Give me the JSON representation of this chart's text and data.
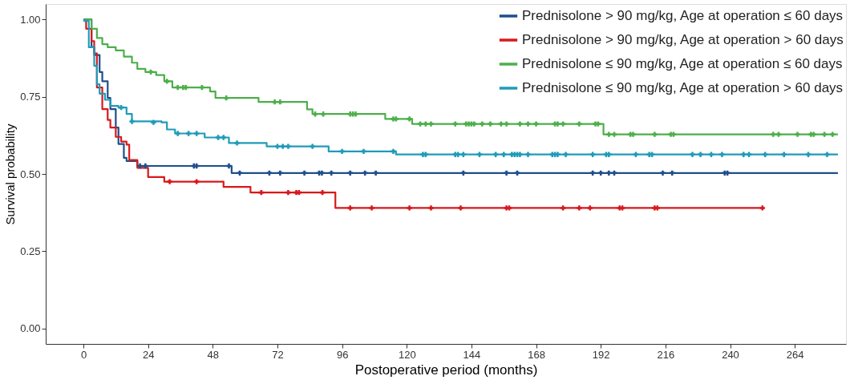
{
  "chart_data": {
    "type": "step",
    "xlabel": "Postoperative period (months)",
    "ylabel": "Survival probability",
    "xlim": [
      -14,
      283
    ],
    "ylim": [
      -0.05,
      1.05
    ],
    "xticks": [
      0,
      24,
      48,
      72,
      96,
      120,
      144,
      168,
      192,
      216,
      240,
      264
    ],
    "yticks": [
      {
        "value": 0,
        "label": "0.00"
      },
      {
        "value": 0.25,
        "label": "0.25"
      },
      {
        "value": 0.5,
        "label": "0.50"
      },
      {
        "value": 0.75,
        "label": "0.75"
      },
      {
        "value": 1,
        "label": "1.00"
      }
    ],
    "grid": false,
    "legend": "top right",
    "line_style": "solid",
    "series": [
      {
        "type": "step",
        "name": "Prednisolone > 90 mg/kg, Age at operation ≤ 60 days",
        "color": "#1f4e8c",
        "x": [
          0,
          3,
          4,
          6,
          7,
          9,
          10,
          12,
          13,
          15,
          16,
          20,
          55,
          280
        ],
        "values": [
          1,
          0.91,
          0.885,
          0.83,
          0.8,
          0.746,
          0.71,
          0.65,
          0.597,
          0.552,
          0.542,
          0.526,
          0.503,
          0.503
        ]
      },
      {
        "type": "step",
        "name": "Prednisolone > 90 mg/kg, Age at operation > 60 days",
        "color": "#d7191c",
        "x": [
          0,
          1,
          3,
          4,
          5,
          7,
          9,
          10,
          12,
          14,
          16,
          17,
          20,
          24,
          30,
          52,
          62,
          93.5,
          252
        ],
        "values": [
          1,
          0.97,
          0.93,
          0.89,
          0.78,
          0.71,
          0.675,
          0.65,
          0.62,
          0.605,
          0.595,
          0.545,
          0.52,
          0.49,
          0.475,
          0.458,
          0.44,
          0.39,
          0.39
        ]
      },
      {
        "type": "step",
        "name": "Prednisolone ≤ 90 mg/kg, Age at operation ≤ 60 days",
        "color": "#4caf4a",
        "x": [
          0,
          3,
          5,
          7,
          9,
          12,
          15,
          18,
          20,
          23,
          27,
          30,
          33,
          47,
          49,
          65,
          83,
          85,
          112,
          122,
          193,
          280
        ],
        "values": [
          1,
          0.97,
          0.94,
          0.92,
          0.91,
          0.9,
          0.88,
          0.86,
          0.84,
          0.83,
          0.82,
          0.8,
          0.78,
          0.767,
          0.746,
          0.733,
          0.709,
          0.694,
          0.678,
          0.662,
          0.628,
          0.628
        ]
      },
      {
        "type": "step",
        "name": "Prednisolone ≤ 90 mg/kg, Age at operation > 60 days",
        "color": "#1f9bb8",
        "x": [
          0,
          0.3,
          2,
          4,
          5,
          6,
          8,
          10,
          13,
          16,
          18,
          29,
          31,
          34,
          45,
          54,
          68,
          91,
          116,
          280
        ],
        "values": [
          1,
          0.995,
          0.91,
          0.85,
          0.79,
          0.76,
          0.74,
          0.72,
          0.715,
          0.694,
          0.67,
          0.667,
          0.644,
          0.631,
          0.618,
          0.6,
          0.589,
          0.573,
          0.563,
          0.563
        ]
      },
      {
        "type": "scatter",
        "marker": "cross",
        "color": "#1f4e8c",
        "x": [
          21,
          23,
          41,
          42,
          54,
          58,
          69,
          73,
          82,
          87.5,
          88.5,
          92,
          99,
          104.5,
          108.5,
          141,
          157,
          161,
          189,
          192,
          195,
          197,
          215,
          218.5,
          238,
          239
        ],
        "values": [
          0.526,
          0.526,
          0.526,
          0.526,
          0.526,
          0.503,
          0.503,
          0.503,
          0.503,
          0.503,
          0.503,
          0.503,
          0.503,
          0.503,
          0.503,
          0.503,
          0.503,
          0.503,
          0.503,
          0.503,
          0.503,
          0.503,
          0.503,
          0.503,
          0.503,
          0.503
        ]
      },
      {
        "type": "scatter",
        "marker": "cross",
        "color": "#d7191c",
        "x": [
          32,
          42,
          66,
          76,
          79,
          80,
          88.7,
          99,
          107,
          121,
          129,
          140,
          157,
          158,
          178,
          184,
          188,
          199,
          200,
          212,
          213,
          252
        ],
        "values": [
          0.475,
          0.475,
          0.44,
          0.44,
          0.44,
          0.44,
          0.44,
          0.39,
          0.39,
          0.39,
          0.39,
          0.39,
          0.39,
          0.39,
          0.39,
          0.39,
          0.39,
          0.39,
          0.39,
          0.39,
          0.39,
          0.39
        ]
      },
      {
        "type": "scatter",
        "marker": "cross",
        "color": "#4caf4a",
        "x": [
          25,
          31,
          35,
          37,
          38,
          44,
          53,
          71,
          73,
          86,
          89,
          99,
          100,
          101,
          115,
          116,
          121,
          125,
          127,
          129,
          138,
          142,
          143,
          144,
          145,
          148,
          151,
          155,
          157,
          162,
          165,
          168,
          175,
          176,
          178,
          184,
          190,
          191,
          195,
          197,
          203,
          204,
          212,
          218,
          219,
          256,
          258,
          265,
          270,
          271,
          275,
          278
        ],
        "values": [
          0.83,
          0.8,
          0.78,
          0.78,
          0.78,
          0.78,
          0.746,
          0.733,
          0.733,
          0.694,
          0.694,
          0.694,
          0.694,
          0.694,
          0.678,
          0.678,
          0.678,
          0.662,
          0.662,
          0.662,
          0.662,
          0.662,
          0.662,
          0.662,
          0.662,
          0.662,
          0.662,
          0.662,
          0.662,
          0.662,
          0.662,
          0.662,
          0.662,
          0.662,
          0.662,
          0.662,
          0.662,
          0.662,
          0.628,
          0.628,
          0.628,
          0.628,
          0.628,
          0.628,
          0.628,
          0.628,
          0.628,
          0.628,
          0.628,
          0.628,
          0.628,
          0.628
        ]
      },
      {
        "type": "scatter",
        "marker": "cross",
        "color": "#1f9bb8",
        "x": [
          14,
          18,
          26,
          35,
          39,
          42,
          50,
          52,
          57,
          72,
          74,
          76,
          85,
          96,
          104,
          115,
          126,
          127,
          138,
          139,
          141,
          147,
          153,
          156,
          159,
          160,
          161,
          162,
          165,
          174,
          175,
          176,
          179,
          189,
          194,
          195,
          205,
          210,
          211,
          226,
          229,
          233,
          237,
          245,
          247,
          253,
          260,
          269,
          276
        ],
        "values": [
          0.715,
          0.67,
          0.667,
          0.631,
          0.631,
          0.631,
          0.618,
          0.618,
          0.6,
          0.589,
          0.589,
          0.589,
          0.589,
          0.573,
          0.573,
          0.573,
          0.563,
          0.563,
          0.563,
          0.563,
          0.563,
          0.563,
          0.563,
          0.563,
          0.563,
          0.563,
          0.563,
          0.563,
          0.563,
          0.563,
          0.563,
          0.563,
          0.563,
          0.563,
          0.563,
          0.563,
          0.563,
          0.563,
          0.563,
          0.563,
          0.563,
          0.563,
          0.563,
          0.563,
          0.563,
          0.563,
          0.563,
          0.563,
          0.563
        ]
      }
    ]
  }
}
